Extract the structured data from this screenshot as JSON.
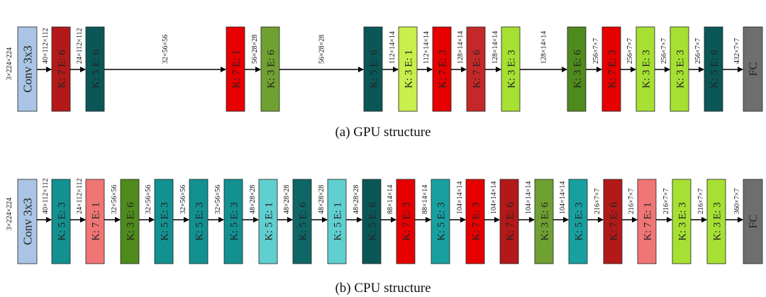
{
  "colors": {
    "conv": "#a9c4e4",
    "fc": "#6e6e6e",
    "red_bright": "#e60000",
    "red_dark": "#b31919",
    "red_mid": "#c42828",
    "red_light": "#f07575",
    "green_dark": "#4f8a1c",
    "green_mid": "#6fa032",
    "green_light": "#c8ef4b",
    "green_lime": "#a6e032",
    "teal_dark": "#0b5757",
    "teal_mid": "#139090",
    "teal_light": "#5fcfcf",
    "teal_bright": "#18a0a0",
    "teal_deep": "#0f6666",
    "arrow": "#000000"
  },
  "gpu": {
    "caption": "(a) GPU structure",
    "input": "3×224×224",
    "blocks": [
      {
        "label": "Conv 3x3",
        "kind": "conv",
        "color": "conv"
      },
      {
        "label": "K: 7 E: 6",
        "kind": "mb",
        "color": "red_dark"
      },
      {
        "label": "K: 5 E: 6",
        "kind": "mb",
        "color": "teal_dark"
      },
      {
        "label": "K: 7 E: 1",
        "kind": "mb",
        "color": "red_bright"
      },
      {
        "label": "K: 3 E: 6",
        "kind": "mb",
        "color": "green_mid"
      },
      {
        "label": "K: 5 E: 6",
        "kind": "mb",
        "color": "teal_dark"
      },
      {
        "label": "K: 3 E: 1",
        "kind": "mb",
        "color": "green_light"
      },
      {
        "label": "K: 7 E: 3",
        "kind": "mb",
        "color": "red_bright"
      },
      {
        "label": "K: 7 E: 6",
        "kind": "mb",
        "color": "red_mid"
      },
      {
        "label": "K: 3 E: 3",
        "kind": "mb",
        "color": "green_lime"
      },
      {
        "label": "K: 3 E: 6",
        "kind": "mb",
        "color": "green_dark"
      },
      {
        "label": "K: 7 E: 3",
        "kind": "mb",
        "color": "red_bright"
      },
      {
        "label": "K: 3 E: 3",
        "kind": "mb",
        "color": "green_lime"
      },
      {
        "label": "K: 3 E: 3",
        "kind": "mb",
        "color": "green_lime"
      },
      {
        "label": "K: 5 E: 6",
        "kind": "mb",
        "color": "teal_dark"
      },
      {
        "label": "FC",
        "kind": "fc",
        "color": "fc"
      }
    ],
    "edges": [
      "40×112×112",
      "24×112×112",
      "32×56×56",
      "56×28×28",
      "56×28×28",
      "112×14×14",
      "112×14×14",
      "128×14×14",
      "128×14×14",
      "128×14×14",
      "256×7×7",
      "256×7×7",
      "256×7×7",
      "256×7×7",
      "432×7×7"
    ]
  },
  "cpu": {
    "caption": "(b) CPU structure",
    "input": "3×224×224",
    "blocks": [
      {
        "label": "Conv 3x3",
        "kind": "conv",
        "color": "conv"
      },
      {
        "label": "K: 5 E: 3",
        "kind": "mb",
        "color": "teal_mid"
      },
      {
        "label": "K: 7 E: 1",
        "kind": "mb",
        "color": "red_light"
      },
      {
        "label": "K: 3 E: 6",
        "kind": "mb",
        "color": "green_dark"
      },
      {
        "label": "K: 5 E: 3",
        "kind": "mb",
        "color": "teal_mid"
      },
      {
        "label": "K: 5 E: 3",
        "kind": "mb",
        "color": "teal_mid"
      },
      {
        "label": "K: 5 E: 3",
        "kind": "mb",
        "color": "teal_mid"
      },
      {
        "label": "K: 5 E: 1",
        "kind": "mb",
        "color": "teal_light"
      },
      {
        "label": "K: 5 E: 6",
        "kind": "mb",
        "color": "teal_deep"
      },
      {
        "label": "K: 5 E: 1",
        "kind": "mb",
        "color": "teal_light"
      },
      {
        "label": "K: 5 E: 6",
        "kind": "mb",
        "color": "teal_dark"
      },
      {
        "label": "K: 7 E: 3",
        "kind": "mb",
        "color": "red_bright"
      },
      {
        "label": "K: 5 E: 3",
        "kind": "mb",
        "color": "teal_bright"
      },
      {
        "label": "K: 7 E: 3",
        "kind": "mb",
        "color": "red_bright"
      },
      {
        "label": "K: 7 E: 6",
        "kind": "mb",
        "color": "red_dark"
      },
      {
        "label": "K: 3 E: 6",
        "kind": "mb",
        "color": "green_mid"
      },
      {
        "label": "K: 5 E: 3",
        "kind": "mb",
        "color": "teal_bright"
      },
      {
        "label": "K: 7 E: 6",
        "kind": "mb",
        "color": "red_dark"
      },
      {
        "label": "K: 7 E: 1",
        "kind": "mb",
        "color": "red_light"
      },
      {
        "label": "K: 3 E: 3",
        "kind": "mb",
        "color": "green_lime"
      },
      {
        "label": "K: 3 E: 3",
        "kind": "mb",
        "color": "green_lime"
      },
      {
        "label": "FC",
        "kind": "fc",
        "color": "fc"
      }
    ],
    "edges": [
      "40×112×112",
      "24×112×112",
      "32×56×56",
      "32×56×56",
      "32×56×56",
      "32×56×56",
      "48×28×28",
      "48×28×28",
      "48×28×28",
      "48×28×28",
      "88×14×14",
      "88×14×14",
      "104×14×14",
      "104×14×14",
      "104×14×14",
      "104×14×14",
      "216×7×7",
      "216×7×7",
      "216×7×7",
      "216×7×7",
      "360×7×7"
    ]
  }
}
